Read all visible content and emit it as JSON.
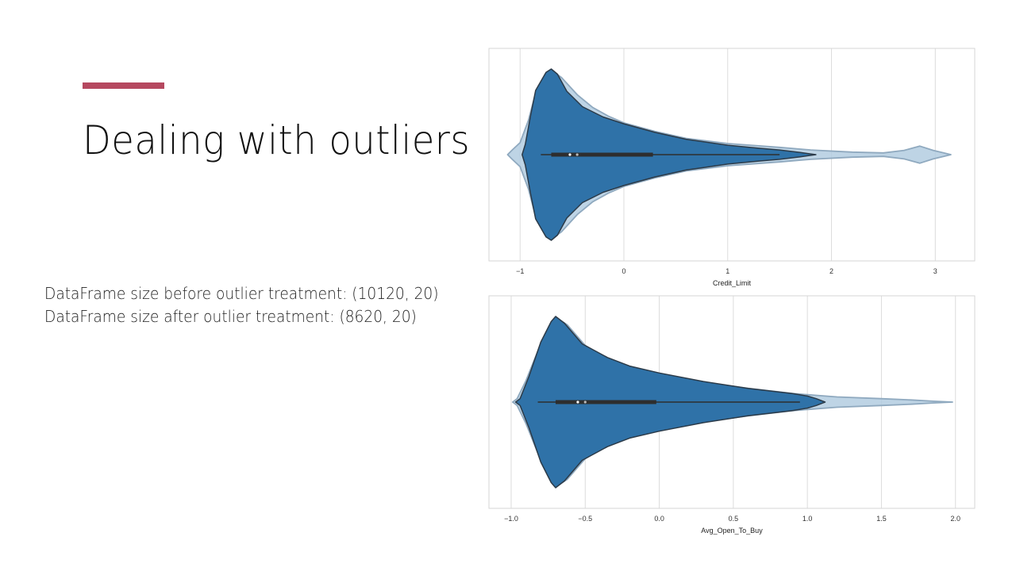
{
  "slide": {
    "title": "Dealing with outliers",
    "accent_color": "#b5485f",
    "info_lines": [
      "DataFrame size before outlier treatment: (10120, 20)",
      "DataFrame size after outlier treatment: (8620, 20)"
    ]
  },
  "chart_data": [
    {
      "type": "violin",
      "xlabel": "Credit_Limit",
      "ticks": [
        -1,
        0,
        1,
        2,
        3
      ],
      "tick_labels": [
        "−1",
        "0",
        "1",
        "2",
        "3"
      ],
      "xlim": [
        -1.3,
        3.38
      ],
      "grid": true,
      "series": [
        {
          "role": "before",
          "color": "#b3cde0",
          "density": [
            [
              -1.12,
              0
            ],
            [
              -1.08,
              0.05
            ],
            [
              -1.0,
              0.14
            ],
            [
              -0.92,
              0.4
            ],
            [
              -0.85,
              0.72
            ],
            [
              -0.75,
              0.94
            ],
            [
              -0.69,
              0.98
            ],
            [
              -0.6,
              0.9
            ],
            [
              -0.45,
              0.7
            ],
            [
              -0.3,
              0.55
            ],
            [
              -0.15,
              0.45
            ],
            [
              0.0,
              0.37
            ],
            [
              0.3,
              0.27
            ],
            [
              0.6,
              0.19
            ],
            [
              1.0,
              0.13
            ],
            [
              1.5,
              0.085
            ],
            [
              1.8,
              0.055
            ],
            [
              2.2,
              0.03
            ],
            [
              2.5,
              0.02
            ],
            [
              2.7,
              0.05
            ],
            [
              2.85,
              0.1
            ],
            [
              2.98,
              0.05
            ],
            [
              3.08,
              0.02
            ],
            [
              3.15,
              0
            ]
          ]
        },
        {
          "role": "after",
          "color": "#2f72a8",
          "density": [
            [
              -0.98,
              0
            ],
            [
              -0.95,
              0.12
            ],
            [
              -0.9,
              0.45
            ],
            [
              -0.85,
              0.75
            ],
            [
              -0.75,
              0.96
            ],
            [
              -0.7,
              1.0
            ],
            [
              -0.64,
              0.94
            ],
            [
              -0.55,
              0.74
            ],
            [
              -0.4,
              0.56
            ],
            [
              -0.2,
              0.44
            ],
            [
              0.0,
              0.36
            ],
            [
              0.3,
              0.26
            ],
            [
              0.6,
              0.18
            ],
            [
              1.0,
              0.11
            ],
            [
              1.3,
              0.075
            ],
            [
              1.5,
              0.055
            ],
            [
              1.7,
              0.025
            ],
            [
              1.85,
              0
            ]
          ]
        }
      ],
      "box": {
        "whisker": [
          -0.8,
          1.5
        ],
        "q1": -0.7,
        "q3": 0.28,
        "medians": [
          -0.52,
          -0.45
        ]
      }
    },
    {
      "type": "violin",
      "xlabel": "Avg_Open_To_Buy",
      "ticks": [
        -1.0,
        -0.5,
        0.0,
        0.5,
        1.0,
        1.5,
        2.0
      ],
      "tick_labels": [
        "−1.0",
        "−0.5",
        "0.0",
        "0.5",
        "1.0",
        "1.5",
        "2.0"
      ],
      "xlim": [
        -1.15,
        2.13
      ],
      "grid": true,
      "series": [
        {
          "role": "before",
          "color": "#b3cde0",
          "density": [
            [
              -0.99,
              0
            ],
            [
              -0.96,
              0.04
            ],
            [
              -0.9,
              0.25
            ],
            [
              -0.8,
              0.68
            ],
            [
              -0.72,
              0.94
            ],
            [
              -0.69,
              0.98
            ],
            [
              -0.62,
              0.9
            ],
            [
              -0.5,
              0.66
            ],
            [
              -0.35,
              0.5
            ],
            [
              -0.2,
              0.4
            ],
            [
              0.0,
              0.32
            ],
            [
              0.3,
              0.23
            ],
            [
              0.6,
              0.16
            ],
            [
              0.9,
              0.1
            ],
            [
              1.2,
              0.06
            ],
            [
              1.5,
              0.04
            ],
            [
              1.7,
              0.025
            ],
            [
              1.85,
              0.01
            ],
            [
              1.98,
              0
            ]
          ]
        },
        {
          "role": "after",
          "color": "#2f72a8",
          "density": [
            [
              -0.97,
              0
            ],
            [
              -0.94,
              0.04
            ],
            [
              -0.88,
              0.3
            ],
            [
              -0.8,
              0.7
            ],
            [
              -0.73,
              0.94
            ],
            [
              -0.7,
              1.0
            ],
            [
              -0.64,
              0.92
            ],
            [
              -0.52,
              0.68
            ],
            [
              -0.35,
              0.52
            ],
            [
              -0.2,
              0.42
            ],
            [
              0.0,
              0.34
            ],
            [
              0.3,
              0.24
            ],
            [
              0.6,
              0.16
            ],
            [
              0.9,
              0.1
            ],
            [
              1.0,
              0.07
            ],
            [
              1.06,
              0.04
            ],
            [
              1.12,
              0
            ]
          ]
        }
      ],
      "box": {
        "whisker": [
          -0.82,
          0.95
        ],
        "q1": -0.7,
        "q3": -0.02,
        "medians": [
          -0.55,
          -0.5
        ]
      }
    }
  ]
}
